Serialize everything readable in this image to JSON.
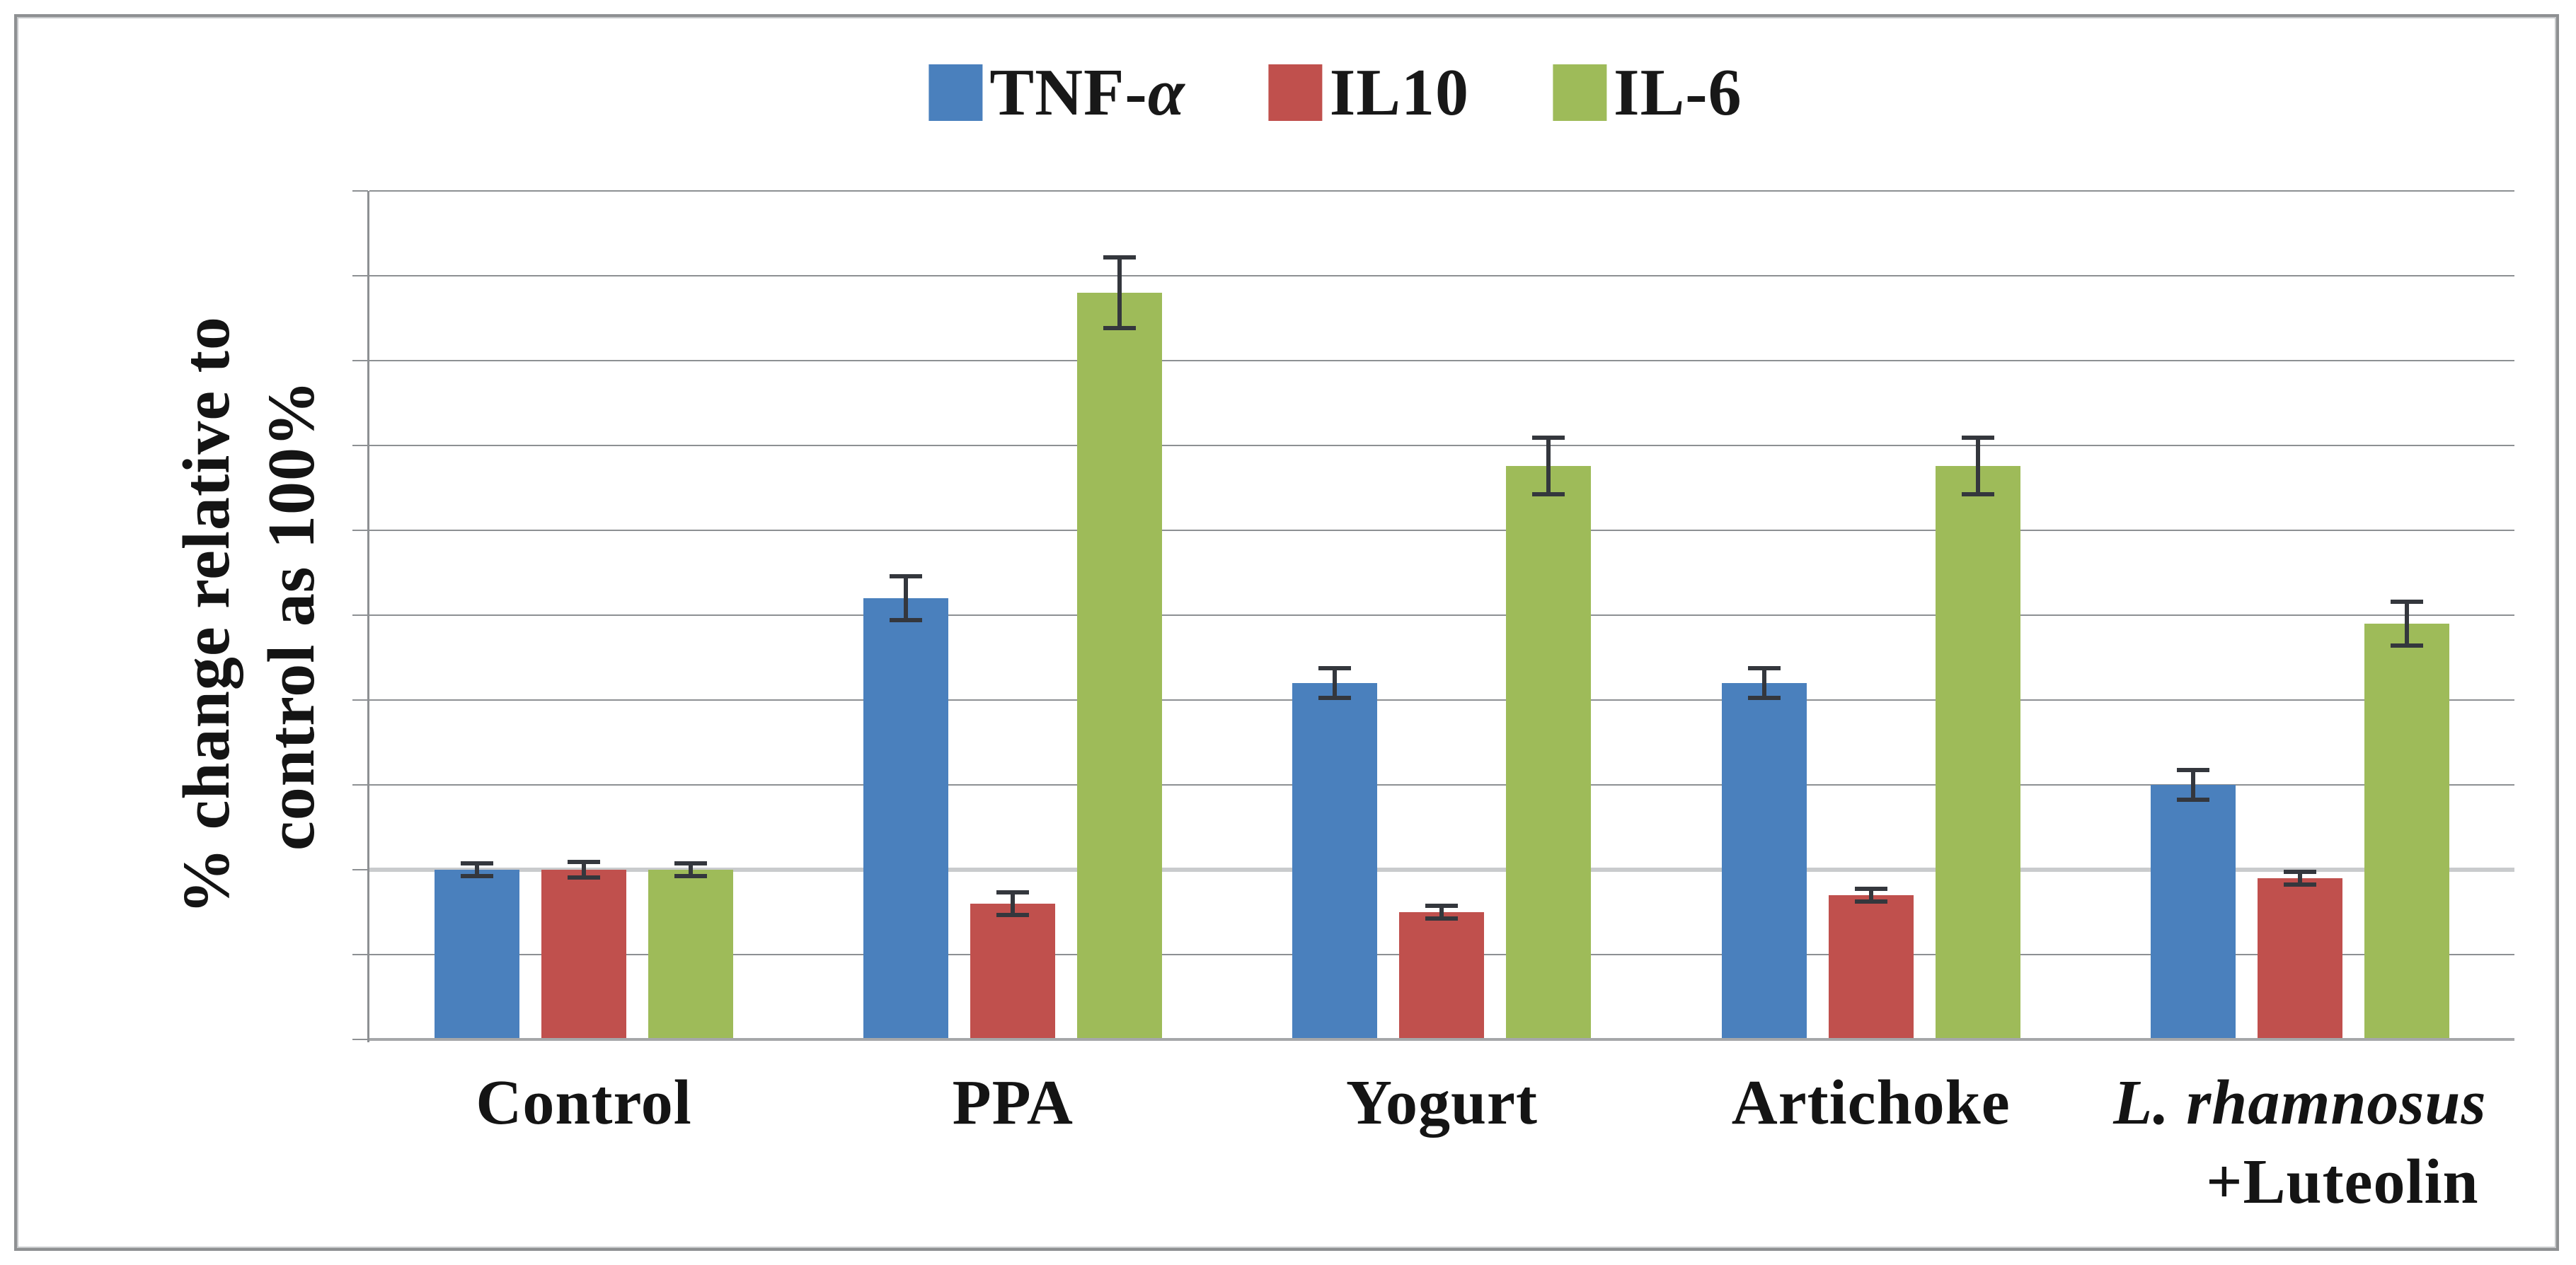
{
  "figure": {
    "background": "#FFFFFF",
    "border_color": "#8E9092"
  },
  "legend": {
    "items": [
      {
        "text": "TNF-",
        "italic_suffix": "α",
        "series": "TNF-α"
      },
      {
        "text": "IL10",
        "italic_suffix": "",
        "series": "IL10"
      },
      {
        "text": "IL-6",
        "italic_suffix": "",
        "series": "IL-6"
      }
    ]
  },
  "y_axis": {
    "ylabel_lines": [
      "% change relative to",
      "control as 100%"
    ]
  },
  "chart_data": {
    "type": "bar",
    "title": "",
    "xlabel": "",
    "ylabel": "% change relative to control as 100%",
    "ylim": [
      0,
      500
    ],
    "grid": true,
    "grid_step": 50,
    "highlight_gridline": 100,
    "legend_position": "top",
    "error_color": "#34373D",
    "categories": [
      "Control",
      "PPA",
      "Yogurt",
      "Artichoke",
      "L. rhamnosus +Luteolin"
    ],
    "categories_display": [
      {
        "lines": [
          {
            "text": "Control",
            "italic": false
          }
        ]
      },
      {
        "lines": [
          {
            "text": "PPA",
            "italic": false
          }
        ]
      },
      {
        "lines": [
          {
            "text": "Yogurt",
            "italic": false
          }
        ]
      },
      {
        "lines": [
          {
            "text": "Artichoke",
            "italic": false
          }
        ]
      },
      {
        "lines": [
          {
            "text": "L. rhamnosus",
            "italic": true
          },
          {
            "text": "+Luteolin",
            "italic": false
          }
        ]
      }
    ],
    "series": [
      {
        "name": "TNF-α",
        "color": "#4A80BD",
        "values": [
          100,
          260,
          210,
          210,
          150
        ],
        "errors": [
          5,
          14,
          10,
          10,
          10
        ]
      },
      {
        "name": "IL10",
        "color": "#C0504D",
        "values": [
          100,
          80,
          75,
          85,
          95
        ],
        "errors": [
          6,
          8,
          5,
          5,
          5
        ]
      },
      {
        "name": "IL-6",
        "color": "#9EBB59",
        "values": [
          100,
          440,
          338,
          338,
          245
        ],
        "errors": [
          5,
          22,
          18,
          18,
          14
        ]
      }
    ]
  }
}
